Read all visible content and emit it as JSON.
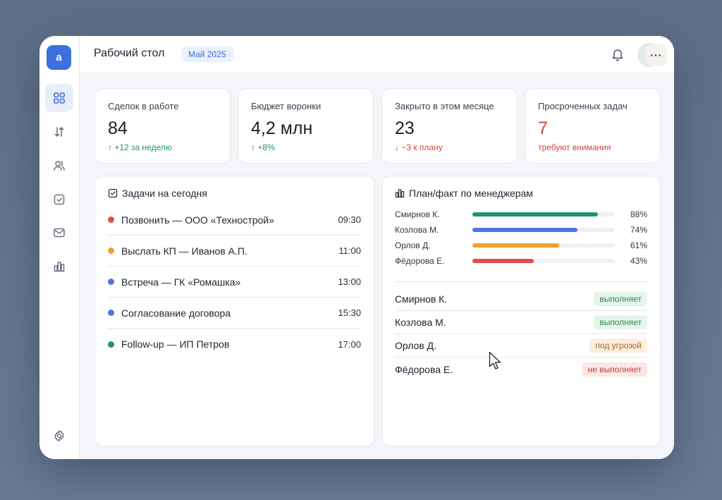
{
  "app": {
    "logo_letter": "a"
  },
  "topbar": {
    "title": "Рабочий стол",
    "period": "Май 2025",
    "more_label": "···"
  },
  "sidebar": {
    "items": [
      {
        "icon": "dashboard-icon",
        "active": true
      },
      {
        "icon": "sort-arrows-icon"
      },
      {
        "icon": "users-icon"
      },
      {
        "icon": "check-square-icon"
      },
      {
        "icon": "mail-icon"
      },
      {
        "icon": "bar-chart-icon"
      }
    ],
    "settings_icon": "gear-icon"
  },
  "kpis": [
    {
      "label": "Сделок в работе",
      "value": "84",
      "delta": "↑ +12 за неделю",
      "tone": "green"
    },
    {
      "label": "Бюджет воронки",
      "value": "4,2 млн",
      "delta": "↑ +8%",
      "tone": "green"
    },
    {
      "label": "Закрыто в этом месяце",
      "value": "23",
      "delta": "↓ −3 к плану",
      "tone": "red"
    },
    {
      "label": "Просроченных задач",
      "value": "7",
      "delta": "требуют внимания",
      "tone": "red"
    }
  ],
  "tasks": {
    "title": "Задачи на сегодня",
    "items": [
      {
        "text": "Позвонить — ООО «Технострой»",
        "time": "09:30",
        "color": "#e14d4d"
      },
      {
        "text": "Выслать КП — Иванов А.П.",
        "time": "11:00",
        "color": "#f0a22e"
      },
      {
        "text": "Встреча — ГК «Ромашка»",
        "time": "13:00",
        "color": "#4f74e3"
      },
      {
        "text": "Согласование договора",
        "time": "15:30",
        "color": "#4f74e3"
      },
      {
        "text": "Follow-up — ИП Петров",
        "time": "17:00",
        "color": "#22946a"
      }
    ]
  },
  "plan": {
    "title": "План/факт по менеджерам",
    "bars": [
      {
        "name": "Смирнов К.",
        "pct": 88,
        "label": "88%",
        "color": "#22946a"
      },
      {
        "name": "Козлова М.",
        "pct": 74,
        "label": "74%",
        "color": "#4f74e3"
      },
      {
        "name": "Орлов Д.",
        "pct": 61,
        "label": "61%",
        "color": "#f0a22e"
      },
      {
        "name": "Фёдорова Е.",
        "pct": 43,
        "label": "43%",
        "color": "#e14d4d"
      }
    ],
    "statuses": [
      {
        "name": "Смирнов К.",
        "status": "выполняет",
        "tone": "ok"
      },
      {
        "name": "Козлова М.",
        "status": "выполняет",
        "tone": "ok"
      },
      {
        "name": "Орлов Д.",
        "status": "под угрозой",
        "tone": "warn"
      },
      {
        "name": "Фёдорова Е.",
        "status": "не выполняет",
        "tone": "bad"
      }
    ]
  }
}
